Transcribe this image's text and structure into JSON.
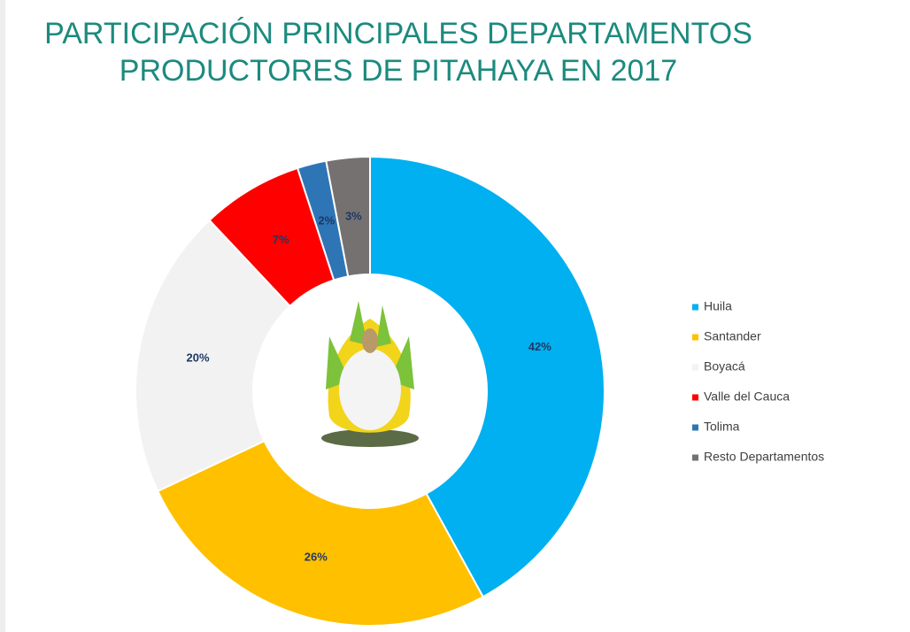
{
  "chart_data": {
    "type": "donut",
    "title": [
      "PARTICIPACIÓN PRINCIPALES DEPARTAMENTOS",
      "PRODUCTORES DE PITAHAYA EN 2017"
    ],
    "categories": [
      "Huila",
      "Santander",
      "Boyacá",
      "Valle del Cauca",
      "Tolima",
      "Resto Departamentos"
    ],
    "values": [
      42,
      26,
      20,
      7,
      2,
      3
    ],
    "value_labels": [
      "42%",
      "26%",
      "20%",
      "7%",
      "2%",
      "3%"
    ],
    "colors": [
      "#00b0f0",
      "#ffc000",
      "#f2f2f2",
      "#ff0000",
      "#2e75b6",
      "#767171"
    ],
    "legend": "right"
  }
}
